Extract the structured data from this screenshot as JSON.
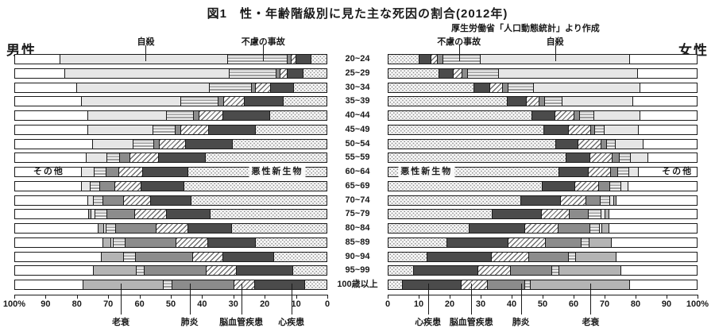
{
  "title": "図1　性・年齢階級別に見た主な死因の割合(2012年)",
  "source": "厚生労働省「人口動態統計」より作成",
  "chart_data": {
    "type": "bar",
    "subtype": "stacked-horizontal-population-pyramid",
    "unit": "%",
    "xlim": [
      0,
      100
    ],
    "grid": false,
    "categories": [
      "20~24",
      "25~29",
      "30~34",
      "35~39",
      "40~44",
      "45~49",
      "50~54",
      "55~59",
      "60~64",
      "65~69",
      "70~74",
      "75~79",
      "80~84",
      "85~89",
      "90~94",
      "95~99",
      "100歳以上"
    ],
    "causes": [
      "悪性新生物",
      "心疾患",
      "脳血管疾患",
      "肺炎",
      "不慮の事故",
      "自殺",
      "老衰",
      "その他"
    ],
    "stack_order_note": "values listed per age group in causes order; bars stack outward from 0%",
    "male": {
      "label": "男性",
      "values": {
        "20~24": [
          5,
          4.5,
          1.5,
          1,
          19,
          54.5,
          0,
          14.5
        ],
        "25~29": [
          7.5,
          5,
          2,
          1,
          15,
          53.5,
          0,
          16
        ],
        "30~34": [
          10.5,
          7.5,
          4.5,
          1,
          13.5,
          43,
          0,
          20
        ],
        "35~39": [
          14,
          12.5,
          6.5,
          1.5,
          12,
          32,
          0,
          21.5
        ],
        "40~44": [
          18.5,
          15,
          7.5,
          1.5,
          8.5,
          25.5,
          0,
          23.5
        ],
        "45~49": [
          23,
          15,
          9,
          1.5,
          7,
          21,
          0,
          23.5
        ],
        "50~54": [
          30.5,
          15,
          8.5,
          1.5,
          6.5,
          13,
          0,
          25
        ],
        "55~59": [
          39.5,
          15,
          9,
          3,
          4,
          6.5,
          0,
          23
        ],
        "60~64": [
          45,
          14.5,
          7.5,
          4,
          3.5,
          4,
          0,
          21.5
        ],
        "65~69": [
          46.5,
          13.5,
          8.5,
          4.5,
          3,
          2.5,
          0,
          21.5
        ],
        "70~74": [
          44,
          13,
          8.5,
          6.5,
          3,
          1.5,
          0,
          23.5
        ],
        "75~79": [
          38,
          14,
          10,
          9,
          3.5,
          1,
          0.5,
          24
        ],
        "80~84": [
          31,
          14,
          10,
          13,
          3,
          0.5,
          1.5,
          27
        ],
        "85~89": [
          23,
          15.5,
          10,
          16.5,
          3.5,
          0.5,
          2.5,
          28.5
        ],
        "90~94": [
          17,
          16.5,
          9.5,
          18.5,
          3.5,
          0,
          7,
          28
        ],
        "95~99": [
          11,
          18,
          9.5,
          20,
          2.5,
          0,
          13.5,
          25.5
        ],
        "100歳以上": [
          7,
          16,
          6.5,
          20,
          2.5,
          0,
          26,
          22
        ]
      }
    },
    "female": {
      "label": "女性",
      "values": {
        "20~24": [
          10,
          3.5,
          2,
          1.5,
          12,
          49,
          0,
          22
        ],
        "25~29": [
          16.5,
          4.5,
          2.5,
          1.5,
          10,
          45.5,
          0,
          19.5
        ],
        "30~34": [
          28,
          5,
          4,
          1.5,
          8,
          35,
          0,
          18.5
        ],
        "35~39": [
          39,
          6,
          4,
          1.5,
          5.5,
          23,
          0,
          21
        ],
        "40~44": [
          47,
          7.5,
          6,
          1.5,
          4.5,
          15,
          0,
          18.5
        ],
        "45~49": [
          51,
          8,
          7,
          1,
          3,
          11,
          0,
          19
        ],
        "50~54": [
          55,
          7,
          7.5,
          1.5,
          2.5,
          9,
          0,
          17.5
        ],
        "55~59": [
          58.5,
          7.5,
          7,
          2,
          3.5,
          5.5,
          0,
          16
        ],
        "60~64": [
          56,
          9.5,
          7,
          2,
          3.5,
          3,
          0,
          19
        ],
        "65~69": [
          50.5,
          10.5,
          7.5,
          3.5,
          3.5,
          2,
          0,
          22.5
        ],
        "70~74": [
          43.5,
          13,
          8,
          4.5,
          3,
          1,
          0.5,
          26.5
        ],
        "75~79": [
          34,
          16,
          9,
          6,
          4,
          1,
          1,
          29
        ],
        "80~84": [
          26.5,
          18,
          11,
          10,
          3,
          0.5,
          2,
          29
        ],
        "85~89": [
          19,
          20,
          12,
          11.5,
          2.5,
          0,
          7,
          28
        ],
        "90~94": [
          12.5,
          21,
          12,
          13,
          2,
          0,
          13,
          26.5
        ],
        "95~99": [
          8,
          21,
          10.5,
          13.5,
          2,
          0,
          20,
          25
        ],
        "100歳以上": [
          4.5,
          19,
          8.5,
          12,
          1.5,
          0,
          32.5,
          22
        ]
      }
    },
    "x_axis": {
      "male_tick_labels": [
        "100%",
        "90",
        "80",
        "70",
        "60",
        "50",
        "40",
        "30",
        "20",
        "10",
        "0"
      ],
      "female_tick_labels": [
        "0",
        "10",
        "20",
        "30",
        "40",
        "50",
        "60",
        "70",
        "80",
        "90",
        "100%"
      ]
    },
    "annotations": {
      "inline_row": "60~64",
      "top_male": [
        {
          "text": "自殺",
          "pct": 58
        },
        {
          "text": "不慮の事故",
          "pct": 20.5
        }
      ],
      "top_female": [
        {
          "text": "不慮の事故",
          "pct": 23
        },
        {
          "text": "自殺",
          "pct": 54
        }
      ],
      "inline_male": [
        {
          "text": "その他",
          "pct": 89,
          "boxed": false
        },
        {
          "text": "悪性新生物",
          "pct": 16,
          "boxed": true
        }
      ],
      "inline_female": [
        {
          "text": "悪性新生物",
          "pct": 12.5,
          "boxed": true
        },
        {
          "text": "その他",
          "pct": 93.5,
          "boxed": false
        }
      ],
      "bottom_male": [
        {
          "text": "老衰",
          "pct": 66
        },
        {
          "text": "肺炎",
          "pct": 44
        },
        {
          "text": "脳血管疾患",
          "pct": 27.5
        },
        {
          "text": "心疾患",
          "pct": 11.5
        }
      ],
      "bottom_female": [
        {
          "text": "心疾患",
          "pct": 13
        },
        {
          "text": "脳血管疾患",
          "pct": 27
        },
        {
          "text": "肺炎",
          "pct": 43
        },
        {
          "text": "老衰",
          "pct": 65.5
        }
      ]
    },
    "patterns": {
      "悪性新生物": "dots",
      "心疾患": "solid-dark-gray",
      "脳血管疾患": "diagonal-hatch",
      "肺炎": "solid-medium-gray",
      "不慮の事故": "horizontal-stripes",
      "自殺": "solid-light-gray",
      "老衰": "solid-silver-gray",
      "その他": "white"
    },
    "colors": {
      "dark_gray": "#4b4b4b",
      "medium_gray": "#8c8c8c",
      "silver_gray": "#b4b4b4",
      "light_gray": "#e6e6e6",
      "outline": "#1a1a1a",
      "background": "#ffffff"
    }
  }
}
